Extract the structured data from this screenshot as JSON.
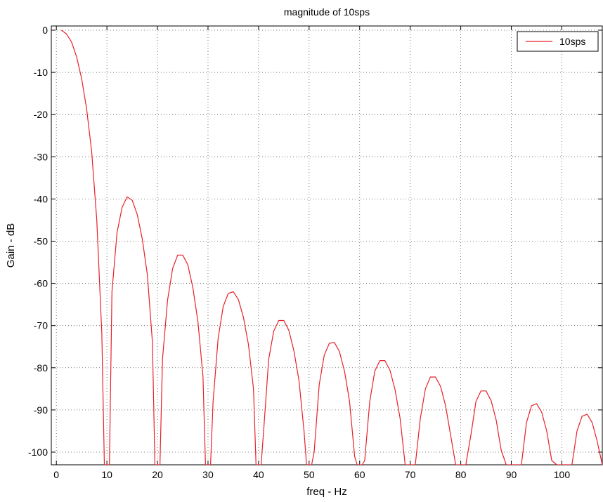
{
  "chart_data": {
    "type": "line",
    "title": "magnitude of 10sps",
    "xlabel": "freq - Hz",
    "ylabel": "Gain - dB",
    "xlim": [
      -1,
      108
    ],
    "ylim": [
      -103,
      1
    ],
    "x_ticks": [
      0,
      10,
      20,
      30,
      40,
      50,
      60,
      70,
      80,
      90,
      100
    ],
    "y_ticks": [
      0,
      -10,
      -20,
      -30,
      -40,
      -50,
      -60,
      -70,
      -80,
      -90,
      -100
    ],
    "grid": true,
    "grid_style": "dotted",
    "legend_position": "top-right",
    "series": [
      {
        "name": "10sps",
        "color": "#e8202a",
        "x": [
          1,
          2,
          3,
          4,
          5,
          6,
          7,
          8,
          9,
          9.5,
          10.5,
          11,
          12,
          13,
          14,
          15,
          16,
          17,
          18,
          19,
          19.5,
          20.5,
          21,
          22,
          23,
          24,
          25,
          26,
          27,
          28,
          29,
          29.5,
          30.5,
          31,
          32,
          33,
          34,
          35,
          36,
          37,
          38,
          39,
          39.5,
          40.5,
          41,
          42,
          43,
          44,
          45,
          46,
          47,
          48,
          49,
          49.5,
          50.5,
          51,
          52,
          53,
          54,
          55,
          56,
          57,
          58,
          59,
          59.5,
          60.5,
          61,
          62,
          63,
          64,
          65,
          66,
          67,
          68,
          69,
          69.5,
          70.5,
          71,
          72,
          73,
          74,
          75,
          76,
          77,
          78,
          79,
          79.5,
          80.5,
          81,
          82,
          83,
          84,
          85,
          86,
          87,
          88,
          89,
          89.5,
          90.5,
          91,
          92,
          93,
          94,
          95,
          96,
          97,
          98,
          99,
          99.5,
          100.5,
          101,
          102,
          103,
          104,
          105,
          106,
          107,
          108
        ],
        "y": [
          0,
          -0.9,
          -2.8,
          -6.3,
          -11.5,
          -18.7,
          -28.9,
          -45,
          -72,
          -103,
          -103,
          -62,
          -48,
          -42,
          -39.5,
          -40.3,
          -43.7,
          -49.5,
          -58,
          -74,
          -103,
          -103,
          -78,
          -64,
          -56.5,
          -53.3,
          -53.3,
          -55.6,
          -61,
          -69,
          -82,
          -103,
          -103,
          -88,
          -73,
          -65.5,
          -62.4,
          -62,
          -63.8,
          -68,
          -74.5,
          -85,
          -103,
          -103,
          -95,
          -78,
          -71.3,
          -68.8,
          -68.8,
          -71.2,
          -76,
          -83,
          -95,
          -103,
          -103,
          -100,
          -84,
          -77,
          -74.2,
          -74,
          -76.2,
          -80.8,
          -88,
          -101,
          -103,
          -103,
          -102,
          -88,
          -80.8,
          -78.3,
          -78.3,
          -80.6,
          -85.2,
          -92,
          -103,
          -103,
          -103,
          -103,
          -92,
          -85,
          -82.2,
          -82.2,
          -84.4,
          -89,
          -96,
          -103,
          -103,
          -103,
          -103,
          -96,
          -88,
          -85.5,
          -85.5,
          -87.8,
          -92.4,
          -99.5,
          -103,
          -103,
          -103,
          -103,
          -103,
          -93,
          -89,
          -88.5,
          -90.5,
          -95,
          -102,
          -103,
          -103,
          -103,
          -103,
          -103,
          -95,
          -91.5,
          -91,
          -93,
          -97.5,
          -103
        ]
      }
    ]
  }
}
